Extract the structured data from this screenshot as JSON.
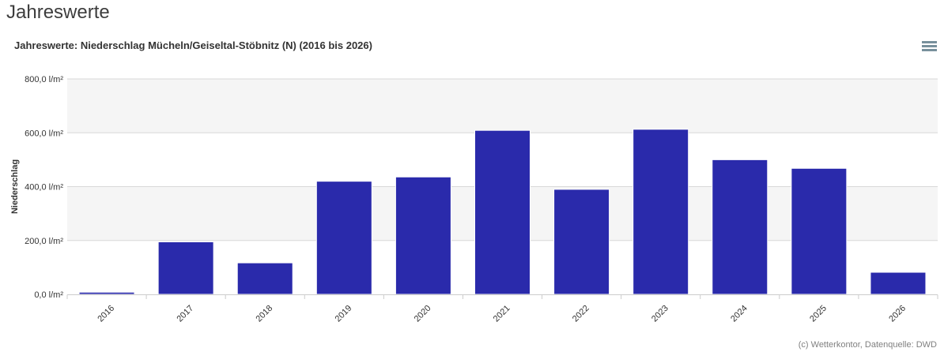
{
  "page": {
    "heading": "Jahreswerte"
  },
  "chart_data": {
    "type": "bar",
    "title": "Jahreswerte: Niederschlag Mücheln/Geiseltal-Stöbnitz (N) (2016 bis 2026)",
    "categories": [
      "2016",
      "2017",
      "2018",
      "2019",
      "2020",
      "2021",
      "2022",
      "2023",
      "2024",
      "2025",
      "2026"
    ],
    "values": [
      8,
      195,
      117,
      420,
      436,
      609,
      390,
      613,
      500,
      468,
      82
    ],
    "xlabel": "",
    "ylabel": "Niederschlag",
    "ylim": [
      0,
      800
    ],
    "ytick_step": 200,
    "ytick_labels": [
      "0,0 l/m²",
      "200,0 l/m²",
      "400,0 l/m²",
      "600,0 l/m²",
      "800,0 l/m²"
    ],
    "grid": true,
    "alternate_bands": true,
    "legend": "none",
    "credit": "(c) Wetterkontor, Datenquelle: DWD"
  },
  "colors": {
    "bar": "#2a2aab",
    "bar_border": "#ffffff",
    "band": "#f5f5f5",
    "grid": "#d8d8d8",
    "axis": "#cccccc",
    "label_text": "#333333",
    "credit_text": "#808080",
    "menu_icon": "#78909c"
  }
}
